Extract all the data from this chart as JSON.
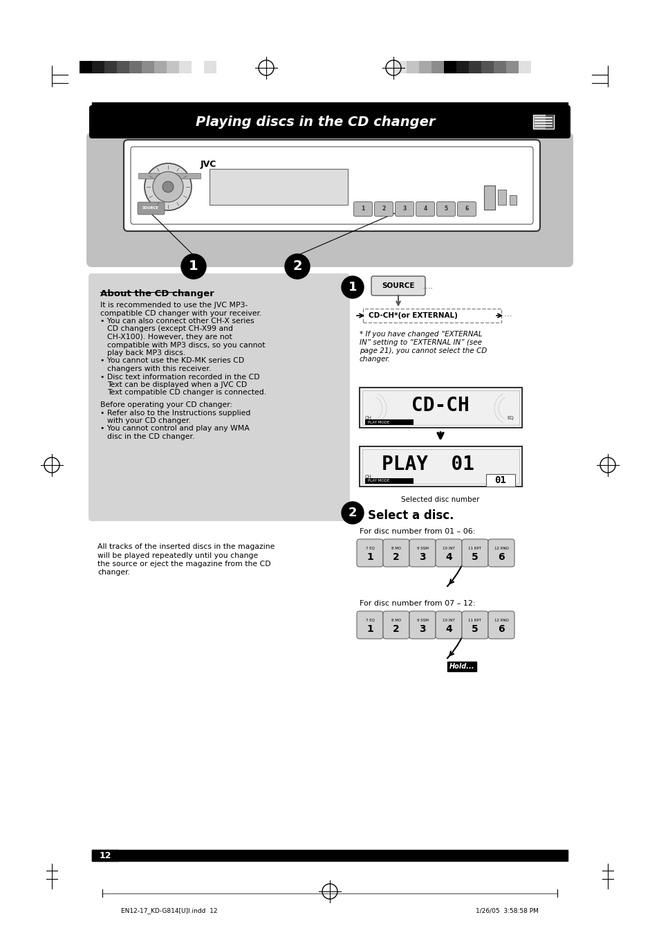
{
  "title": "Playing discs in the CD changer",
  "page_num": "12",
  "footer_left": "EN12-17_KD-G814[U]I.indd  12",
  "footer_right": "1/26/05  3:58:58 PM",
  "about_title": "About the CD changer",
  "tracks_text_lines": [
    "All tracks of the inserted discs in the magazine",
    "will be played repeatedly until you change",
    "the source or eject the magazine from the CD",
    "changer."
  ],
  "step2_title": "Select a disc.",
  "disc_range1": "For disc number from 01 – 06:",
  "disc_range2": "For disc number from 07 – 12:",
  "selected_disc_label": "Selected disc number",
  "note_lines": [
    "* If you have changed “EXTERNAL",
    "IN” setting to “EXTERNAL IN” (see",
    "page 21), you cannot select the CD",
    "changer."
  ],
  "about_body_lines": [
    [
      "It is recommended to use the JVC MP3-",
      0
    ],
    [
      "compatible CD changer with your receiver.",
      0
    ],
    [
      "• You can also connect other CH-X series",
      0
    ],
    [
      "CD changers (except CH-X99 and",
      10
    ],
    [
      "CH-X100). However, they are not",
      10
    ],
    [
      "compatible with MP3 discs, so you cannot",
      10
    ],
    [
      "play back MP3 discs.",
      10
    ],
    [
      "• You cannot use the KD-MK series CD",
      0
    ],
    [
      "changers with this receiver.",
      10
    ],
    [
      "• Disc text information recorded in the CD",
      0
    ],
    [
      "Text can be displayed when a JVC CD",
      10
    ],
    [
      "Text compatible CD changer is connected.",
      10
    ]
  ],
  "before_lines": [
    [
      "Before operating your CD changer:",
      0
    ],
    [
      "• Refer also to the Instructions supplied",
      0
    ],
    [
      "with your CD changer.",
      10
    ],
    [
      "• You cannot control and play any WMA",
      0
    ],
    [
      "disc in the CD changer.",
      10
    ]
  ],
  "btn_tops": [
    "7 EQ",
    "8 MO",
    "9 SSM",
    "10 INT",
    "11 RPT",
    "12 RND"
  ],
  "btn_nums": [
    "1",
    "2",
    "3",
    "4",
    "5",
    "6"
  ],
  "bar_colors_left": [
    "#000000",
    "#1c1c1c",
    "#383838",
    "#545454",
    "#707070",
    "#8c8c8c",
    "#a8a8a8",
    "#c4c4c4",
    "#e0e0e0",
    "#ffffff",
    "#e0e0e0"
  ],
  "bar_colors_right": [
    "#e0e0e0",
    "#c4c4c4",
    "#a8a8a8",
    "#8c8c8c",
    "#000000",
    "#1c1c1c",
    "#383838",
    "#545454",
    "#707070",
    "#8c8c8c",
    "#e0e0e0"
  ],
  "bg": "#ffffff",
  "gray_bg": "#c8c8c8",
  "about_bg": "#d4d4d4"
}
